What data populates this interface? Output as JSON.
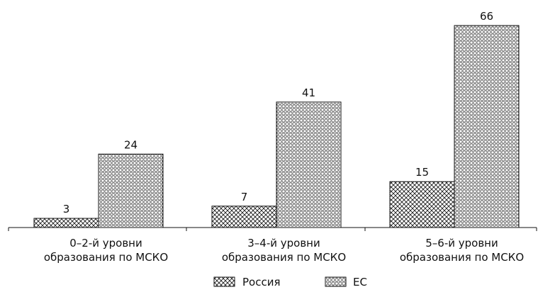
{
  "chart_data": {
    "type": "bar",
    "categories": [
      [
        "0–2-й уровни",
        "образования по МСКО"
      ],
      [
        "3–4-й уровни",
        "образования по МСКО"
      ],
      [
        "5–6-й уровни",
        "образования по МСКО"
      ]
    ],
    "series": [
      {
        "name": "Россия",
        "values": [
          3,
          7,
          15
        ],
        "pattern": "crosshatch"
      },
      {
        "name": "ЕС",
        "values": [
          24,
          41,
          66
        ],
        "pattern": "dots"
      }
    ],
    "ylim": [
      0,
      66
    ],
    "grid": false,
    "legend": "bottom-center",
    "data_labels": true,
    "colors": {
      "stroke": "#111111",
      "fill": "#ffffff"
    }
  }
}
